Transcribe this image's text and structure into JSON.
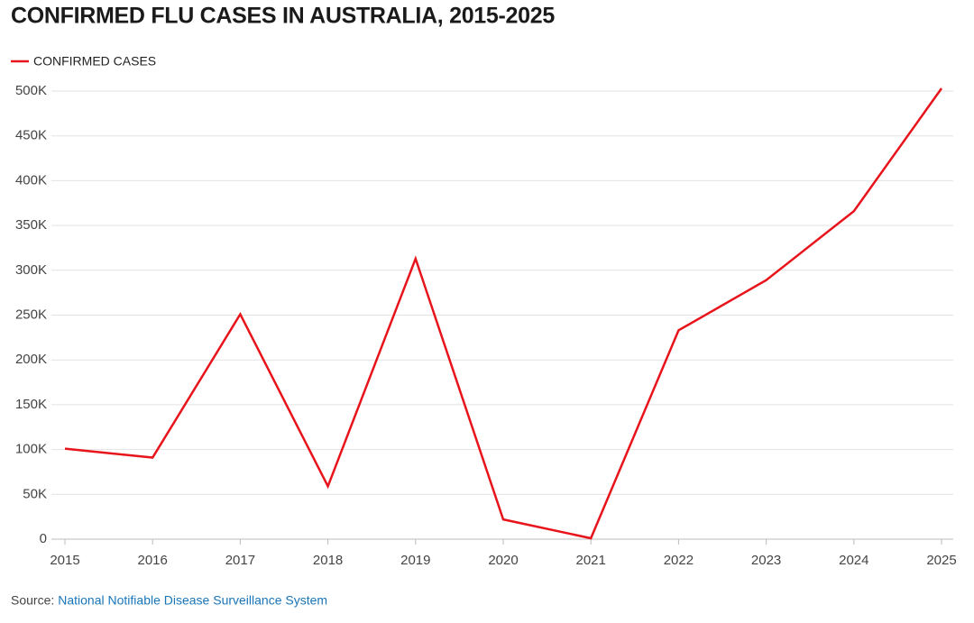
{
  "chart_data": {
    "type": "line",
    "title": "CONFIRMED FLU CASES IN AUSTRALIA, 2015-2025",
    "x": [
      2015,
      2016,
      2017,
      2018,
      2019,
      2020,
      2021,
      2022,
      2023,
      2024,
      2025
    ],
    "series": [
      {
        "name": "CONFIRMED CASES",
        "color": "#e8141b",
        "values": [
          101000,
          91000,
          251000,
          59000,
          313000,
          22000,
          1000,
          233000,
          289000,
          366000,
          503000
        ]
      }
    ],
    "xlim": [
      2015,
      2025
    ],
    "xticks": [
      2015,
      2016,
      2017,
      2018,
      2019,
      2020,
      2021,
      2022,
      2023,
      2024,
      2025
    ],
    "ylim": [
      0,
      500000
    ],
    "yticks": [
      0,
      {
        "value": 50000,
        "label": "50K"
      },
      {
        "value": 100000,
        "label": "100K"
      },
      {
        "value": 150000,
        "label": "150K"
      },
      {
        "value": 200000,
        "label": "200K"
      },
      {
        "value": 250000,
        "label": "250K"
      },
      {
        "value": 300000,
        "label": "300K"
      },
      {
        "value": 350000,
        "label": "350K"
      },
      {
        "value": 400000,
        "label": "400K"
      },
      {
        "value": 450000,
        "label": "450K"
      },
      {
        "value": 500000,
        "label": "500K"
      }
    ],
    "grid": true,
    "legend": "top-left",
    "source_label": "Source:",
    "source_link": "National Notifiable Disease Surveillance System"
  }
}
